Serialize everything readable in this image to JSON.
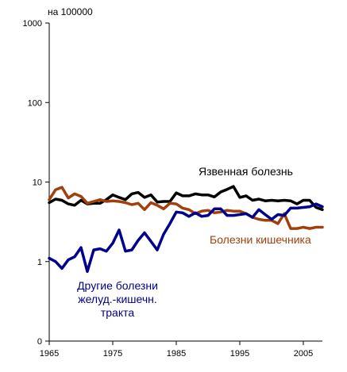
{
  "chart_data": {
    "type": "line",
    "unit_label": "на 100000",
    "y_scale": "log",
    "ylim": [
      1,
      1000
    ],
    "xlim": [
      1965,
      2008
    ],
    "y_ticks": [
      {
        "value": 1000,
        "label": "1000"
      },
      {
        "value": 100,
        "label": "100"
      },
      {
        "value": 10,
        "label": "10"
      },
      {
        "value": 1,
        "label": "1"
      },
      {
        "value": 0.1,
        "label": "0"
      }
    ],
    "x_ticks": [
      1965,
      1975,
      1985,
      1995,
      2005
    ],
    "grid": false,
    "x": [
      1965,
      1966,
      1967,
      1968,
      1969,
      1970,
      1971,
      1972,
      1973,
      1974,
      1975,
      1976,
      1977,
      1978,
      1979,
      1980,
      1981,
      1982,
      1983,
      1984,
      1985,
      1986,
      1987,
      1988,
      1989,
      1990,
      1991,
      1992,
      1993,
      1994,
      1995,
      1996,
      1997,
      1998,
      1999,
      2000,
      2001,
      2002,
      2003,
      2004,
      2005,
      2006,
      2007,
      2008
    ],
    "series": [
      {
        "name": "Язвенная болезнь",
        "color": "#000000",
        "values": [
          5.5,
          6.1,
          5.9,
          5.3,
          5.1,
          5.9,
          5.3,
          5.4,
          5.4,
          6.0,
          6.9,
          6.4,
          6.0,
          7.1,
          7.4,
          6.4,
          6.9,
          5.6,
          5.7,
          5.7,
          7.3,
          6.7,
          6.7,
          7.1,
          6.9,
          6.9,
          6.5,
          7.5,
          8.1,
          8.8,
          6.4,
          6.7,
          5.9,
          6.1,
          5.8,
          5.9,
          5.8,
          5.9,
          5.8,
          5.3,
          5.9,
          5.9,
          4.8,
          4.5
        ]
      },
      {
        "name": "Болезни кишечника",
        "color": "#a0400c",
        "values": [
          6.0,
          8.0,
          8.6,
          6.3,
          7.1,
          6.6,
          5.4,
          5.7,
          6.0,
          5.7,
          5.8,
          5.7,
          5.5,
          5.2,
          5.4,
          4.5,
          5.5,
          5.1,
          4.6,
          5.4,
          5.3,
          4.7,
          4.5,
          4.0,
          4.3,
          4.4,
          4.1,
          4.2,
          4.4,
          4.3,
          4.3,
          4.0,
          3.6,
          3.4,
          3.3,
          3.3,
          3.0,
          4.0,
          2.6,
          2.6,
          2.7,
          2.6,
          2.7,
          2.7
        ]
      },
      {
        "name": "Другие болезни желуд.-кишечн. тракта",
        "color": "#00008b",
        "values": [
          1.1,
          1.0,
          0.82,
          1.05,
          1.15,
          1.5,
          0.75,
          1.4,
          1.45,
          1.35,
          1.7,
          2.5,
          1.35,
          1.4,
          1.85,
          2.3,
          1.8,
          1.4,
          2.2,
          3.0,
          4.2,
          4.1,
          3.7,
          4.1,
          3.7,
          3.8,
          4.6,
          4.6,
          3.8,
          3.8,
          3.9,
          4.0,
          3.6,
          4.5,
          3.9,
          3.4,
          3.9,
          3.8,
          4.7,
          4.7,
          4.8,
          4.9,
          5.3,
          4.9
        ]
      }
    ],
    "annotations": [
      {
        "series": 0,
        "text": [
          "Язвенная болезнь"
        ]
      },
      {
        "series": 1,
        "text": [
          "Болезни кишечника"
        ]
      },
      {
        "series": 2,
        "text": [
          "Другие болезни",
          "желуд.-кишечн.",
          "тракта"
        ]
      }
    ]
  }
}
